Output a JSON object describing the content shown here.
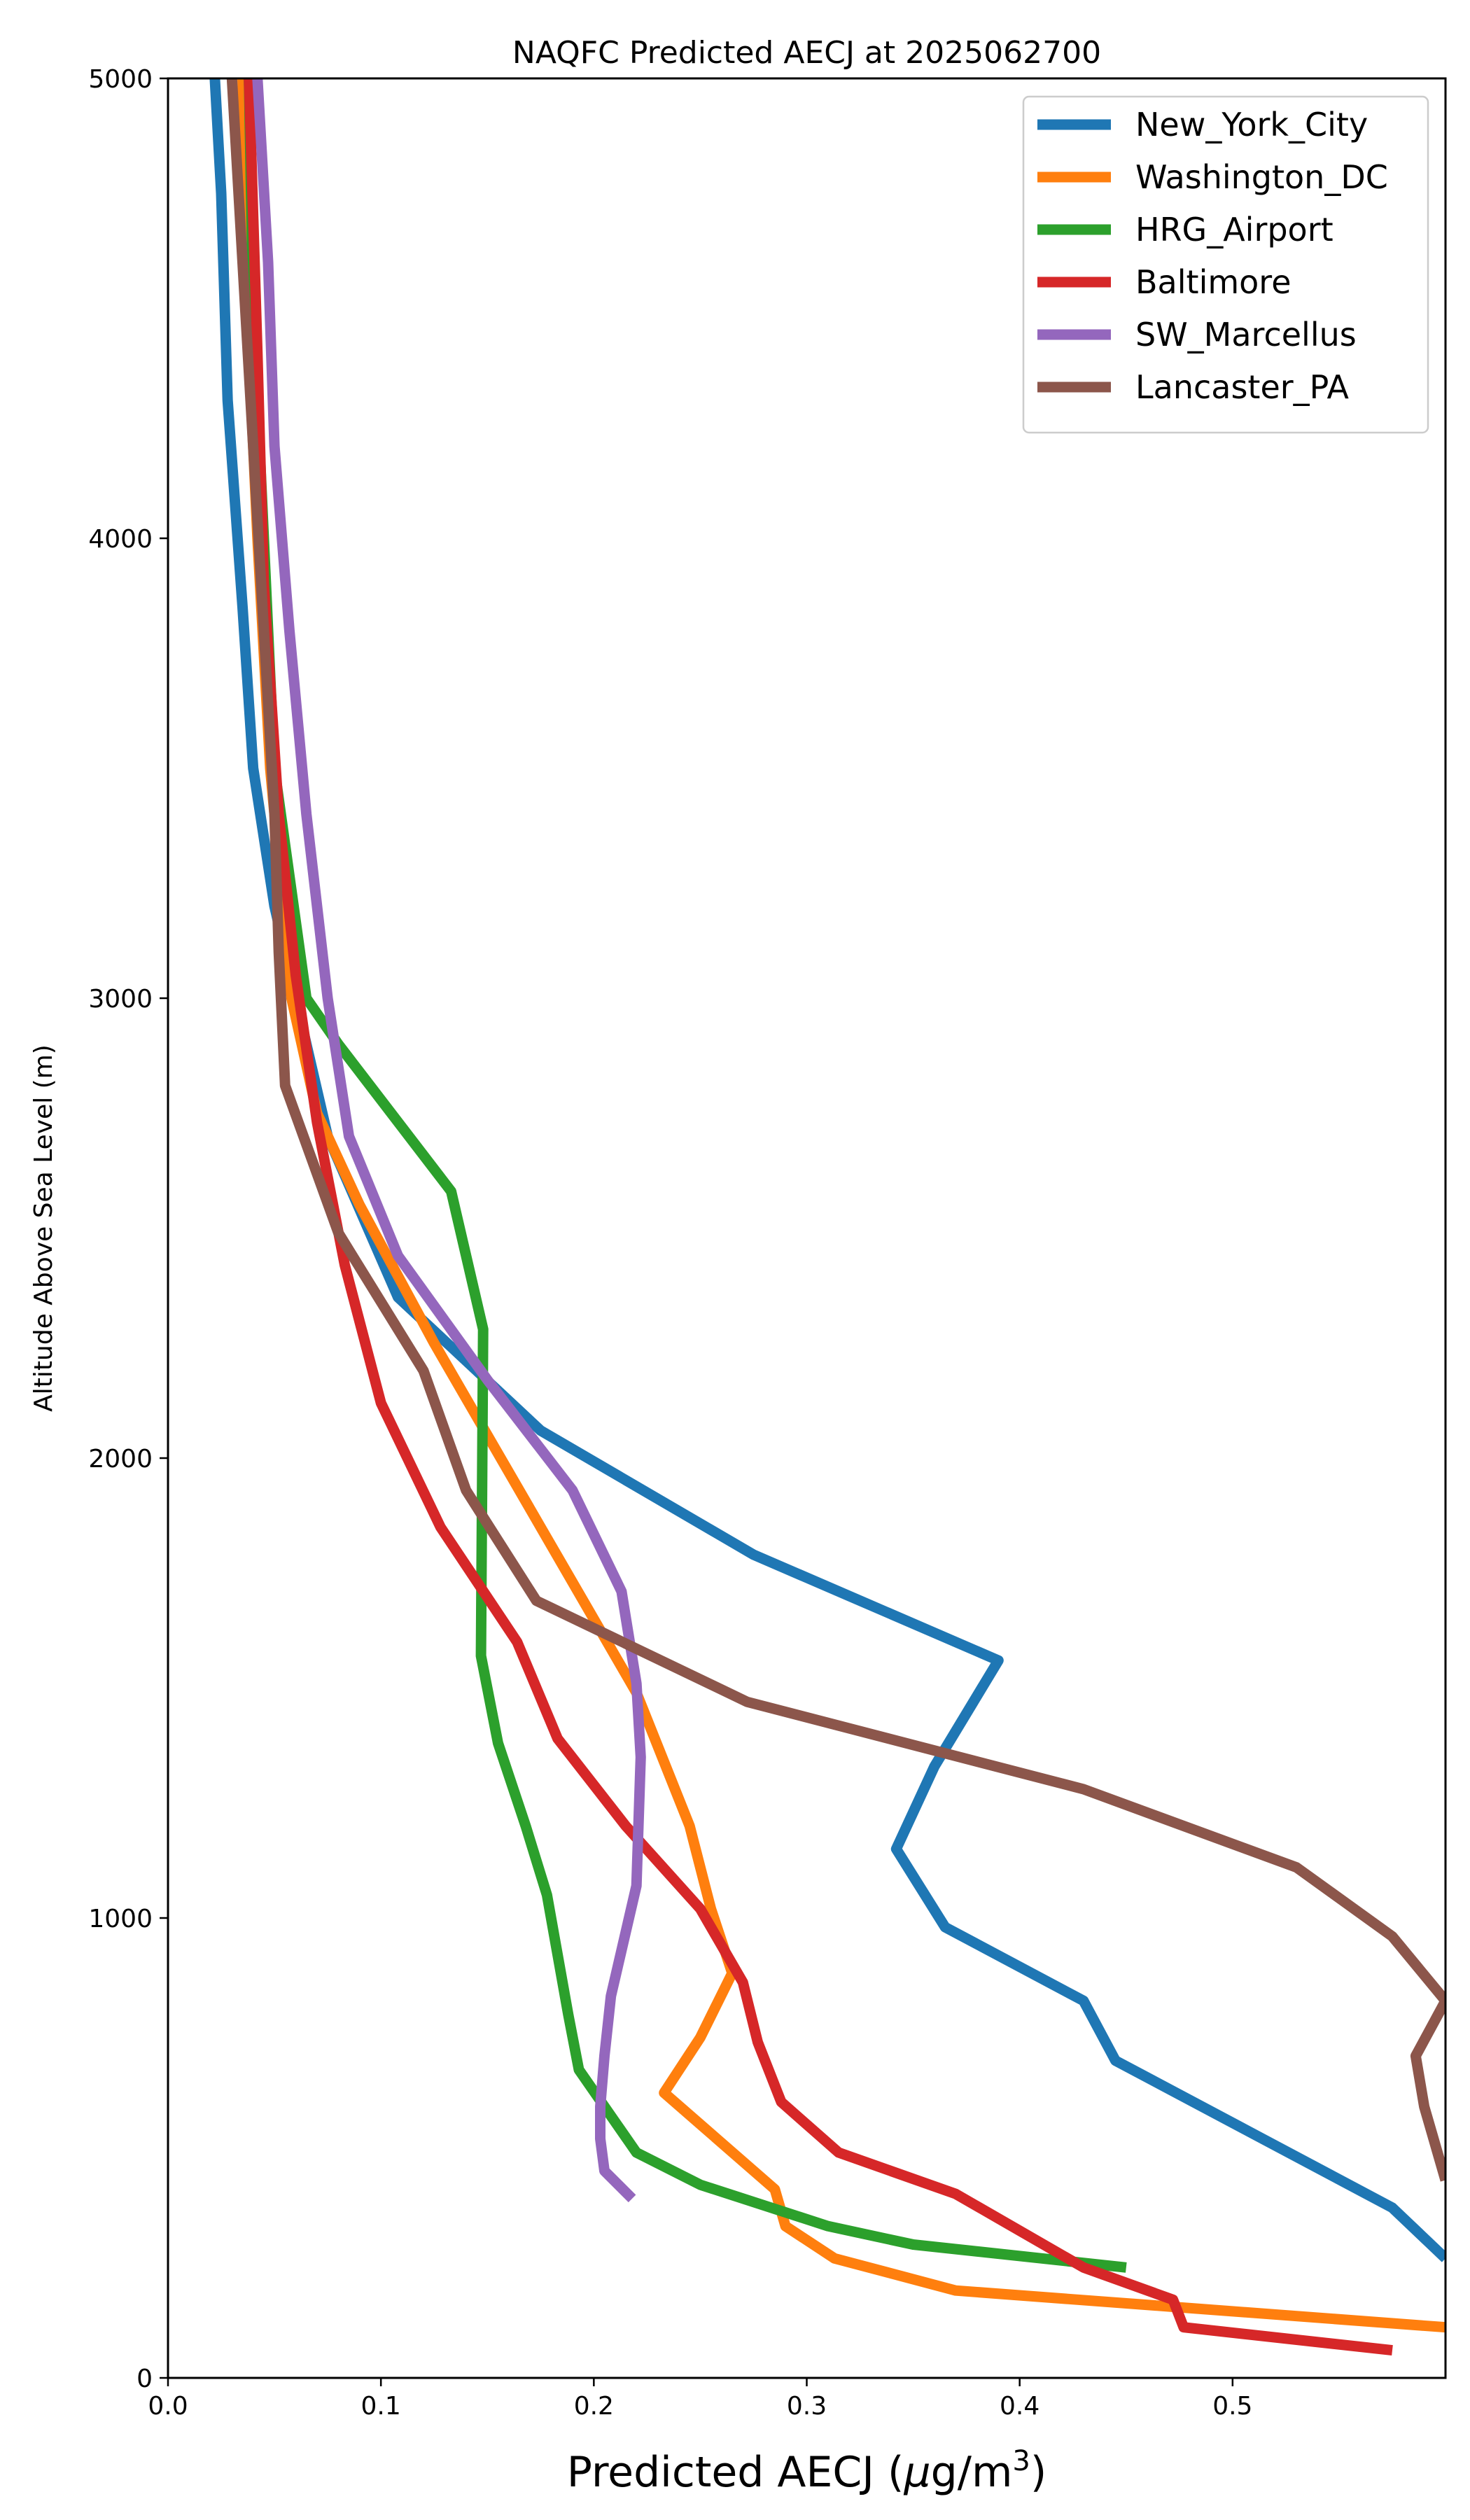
{
  "chart_data": {
    "type": "line",
    "title": "NAQFC Predicted AECJ at 2025062700",
    "xlabel_main": "Predicted AECJ (",
    "xlabel_mu": "μ",
    "xlabel_unit": "g/m",
    "xlabel_sup": "3",
    "xlabel_close": ")",
    "ylabel": "Altitude Above Sea Level (m)",
    "xlim": [
      0.0,
      0.6
    ],
    "ylim": [
      0,
      5000
    ],
    "x_ticks": [
      "0.0",
      "0.1",
      "0.2",
      "0.3",
      "0.4",
      "0.5"
    ],
    "x_tick_values": [
      0.0,
      0.1,
      0.2,
      0.3,
      0.4,
      0.5
    ],
    "y_ticks": [
      "0",
      "1000",
      "2000",
      "3000",
      "4000",
      "5000"
    ],
    "y_tick_values": [
      0,
      1000,
      2000,
      3000,
      4000,
      5000
    ],
    "grid": false,
    "legend_position": "upper right",
    "series": [
      {
        "name": "New_York_City",
        "color": "#1f77b4",
        "points": [
          [
            0.6,
            260
          ],
          [
            0.575,
            370
          ],
          [
            0.445,
            690
          ],
          [
            0.43,
            820
          ],
          [
            0.365,
            980
          ],
          [
            0.342,
            1150
          ],
          [
            0.36,
            1330
          ],
          [
            0.39,
            1560
          ],
          [
            0.275,
            1790
          ],
          [
            0.175,
            2060
          ],
          [
            0.108,
            2350
          ],
          [
            0.075,
            2700
          ],
          [
            0.05,
            3200
          ],
          [
            0.04,
            3500
          ],
          [
            0.035,
            3850
          ],
          [
            0.028,
            4300
          ],
          [
            0.025,
            4750
          ],
          [
            0.022,
            5000
          ]
        ]
      },
      {
        "name": "Washington_DC",
        "color": "#ff7f0e",
        "points": [
          [
            0.6,
            110
          ],
          [
            0.37,
            190
          ],
          [
            0.313,
            260
          ],
          [
            0.29,
            330
          ],
          [
            0.285,
            410
          ],
          [
            0.233,
            620
          ],
          [
            0.25,
            740
          ],
          [
            0.265,
            880
          ],
          [
            0.255,
            1020
          ],
          [
            0.245,
            1200
          ],
          [
            0.22,
            1490
          ],
          [
            0.175,
            1850
          ],
          [
            0.125,
            2250
          ],
          [
            0.09,
            2550
          ],
          [
            0.07,
            2750
          ],
          [
            0.058,
            3000
          ],
          [
            0.048,
            3500
          ],
          [
            0.042,
            4000
          ],
          [
            0.037,
            4500
          ],
          [
            0.035,
            5000
          ]
        ]
      },
      {
        "name": "HRG_Airport",
        "color": "#2ca02c",
        "points": [
          [
            0.45,
            240
          ],
          [
            0.35,
            290
          ],
          [
            0.31,
            330
          ],
          [
            0.25,
            420
          ],
          [
            0.22,
            490
          ],
          [
            0.193,
            670
          ],
          [
            0.188,
            790
          ],
          [
            0.178,
            1050
          ],
          [
            0.168,
            1200
          ],
          [
            0.155,
            1380
          ],
          [
            0.147,
            1570
          ],
          [
            0.148,
            2280
          ],
          [
            0.133,
            2580
          ],
          [
            0.08,
            2900
          ],
          [
            0.065,
            3000
          ],
          [
            0.05,
            3500
          ],
          [
            0.045,
            4000
          ],
          [
            0.04,
            4500
          ],
          [
            0.038,
            5000
          ]
        ]
      },
      {
        "name": "Baltimore",
        "color": "#d62728",
        "points": [
          [
            0.575,
            60
          ],
          [
            0.477,
            110
          ],
          [
            0.472,
            170
          ],
          [
            0.43,
            240
          ],
          [
            0.37,
            400
          ],
          [
            0.315,
            490
          ],
          [
            0.288,
            600
          ],
          [
            0.277,
            730
          ],
          [
            0.27,
            860
          ],
          [
            0.25,
            1020
          ],
          [
            0.215,
            1200
          ],
          [
            0.183,
            1390
          ],
          [
            0.164,
            1600
          ],
          [
            0.128,
            1850
          ],
          [
            0.1,
            2120
          ],
          [
            0.083,
            2420
          ],
          [
            0.07,
            2730
          ],
          [
            0.06,
            3050
          ],
          [
            0.052,
            3400
          ],
          [
            0.045,
            3900
          ],
          [
            0.042,
            4400
          ],
          [
            0.038,
            5000
          ]
        ]
      },
      {
        "name": "SW_Marcellus",
        "color": "#9467bd",
        "points": [
          [
            0.218,
            390
          ],
          [
            0.205,
            450
          ],
          [
            0.203,
            520
          ],
          [
            0.203,
            590
          ],
          [
            0.205,
            700
          ],
          [
            0.208,
            830
          ],
          [
            0.22,
            1070
          ],
          [
            0.222,
            1350
          ],
          [
            0.22,
            1510
          ],
          [
            0.213,
            1710
          ],
          [
            0.19,
            1930
          ],
          [
            0.15,
            2170
          ],
          [
            0.108,
            2440
          ],
          [
            0.085,
            2700
          ],
          [
            0.075,
            3000
          ],
          [
            0.065,
            3400
          ],
          [
            0.057,
            3800
          ],
          [
            0.05,
            4200
          ],
          [
            0.047,
            4600
          ],
          [
            0.042,
            5000
          ]
        ]
      },
      {
        "name": "Lancaster_PA",
        "color": "#8c564b",
        "points": [
          [
            0.6,
            430
          ],
          [
            0.59,
            590
          ],
          [
            0.586,
            700
          ],
          [
            0.6,
            820
          ],
          [
            0.575,
            960
          ],
          [
            0.53,
            1110
          ],
          [
            0.43,
            1280
          ],
          [
            0.272,
            1470
          ],
          [
            0.173,
            1690
          ],
          [
            0.14,
            1930
          ],
          [
            0.12,
            2190
          ],
          [
            0.08,
            2490
          ],
          [
            0.055,
            2810
          ],
          [
            0.052,
            3100
          ],
          [
            0.05,
            3400
          ],
          [
            0.045,
            3800
          ],
          [
            0.04,
            4200
          ],
          [
            0.035,
            4600
          ],
          [
            0.03,
            5000
          ]
        ]
      }
    ]
  }
}
